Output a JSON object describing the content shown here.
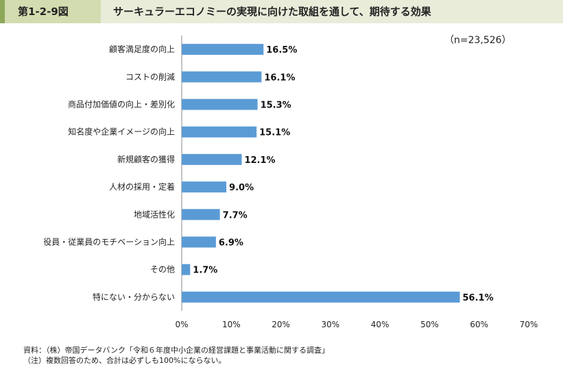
{
  "header": {
    "figure_number": "第1-2-9図",
    "title": "サーキュラーエコノミーの実現に向けた取組を通して、期待する効果"
  },
  "sample_note": "（n=23,526）",
  "chart_data": {
    "type": "bar",
    "orientation": "horizontal",
    "categories": [
      "顧客満足度の向上",
      "コストの削減",
      "商品付加価値の向上・差別化",
      "知名度や企業イメージの向上",
      "新規顧客の獲得",
      "人材の採用・定着",
      "地域活性化",
      "役員・従業員のモチベーション向上",
      "その他",
      "特にない・分からない"
    ],
    "values": [
      16.5,
      16.1,
      15.3,
      15.1,
      12.1,
      9.0,
      7.7,
      6.9,
      1.7,
      56.1
    ],
    "value_labels": [
      "16.5%",
      "16.1%",
      "15.3%",
      "15.1%",
      "12.1%",
      "9.0%",
      "7.7%",
      "6.9%",
      "1.7%",
      "56.1%"
    ],
    "xlim": [
      0,
      70
    ],
    "x_ticks": [
      0,
      10,
      20,
      30,
      40,
      50,
      60,
      70
    ],
    "x_tick_labels": [
      "0%",
      "10%",
      "20%",
      "30%",
      "40%",
      "50%",
      "60%",
      "70%"
    ],
    "grid": false,
    "bar_color": "#5b9bd5"
  },
  "footer": {
    "source": "資料：（株）帝国データバンク「令和６年度中小企業の経営課題と事業活動に関する調査」",
    "note": "（注）複数回答のため、合計は必ずしも100%にならない。"
  }
}
